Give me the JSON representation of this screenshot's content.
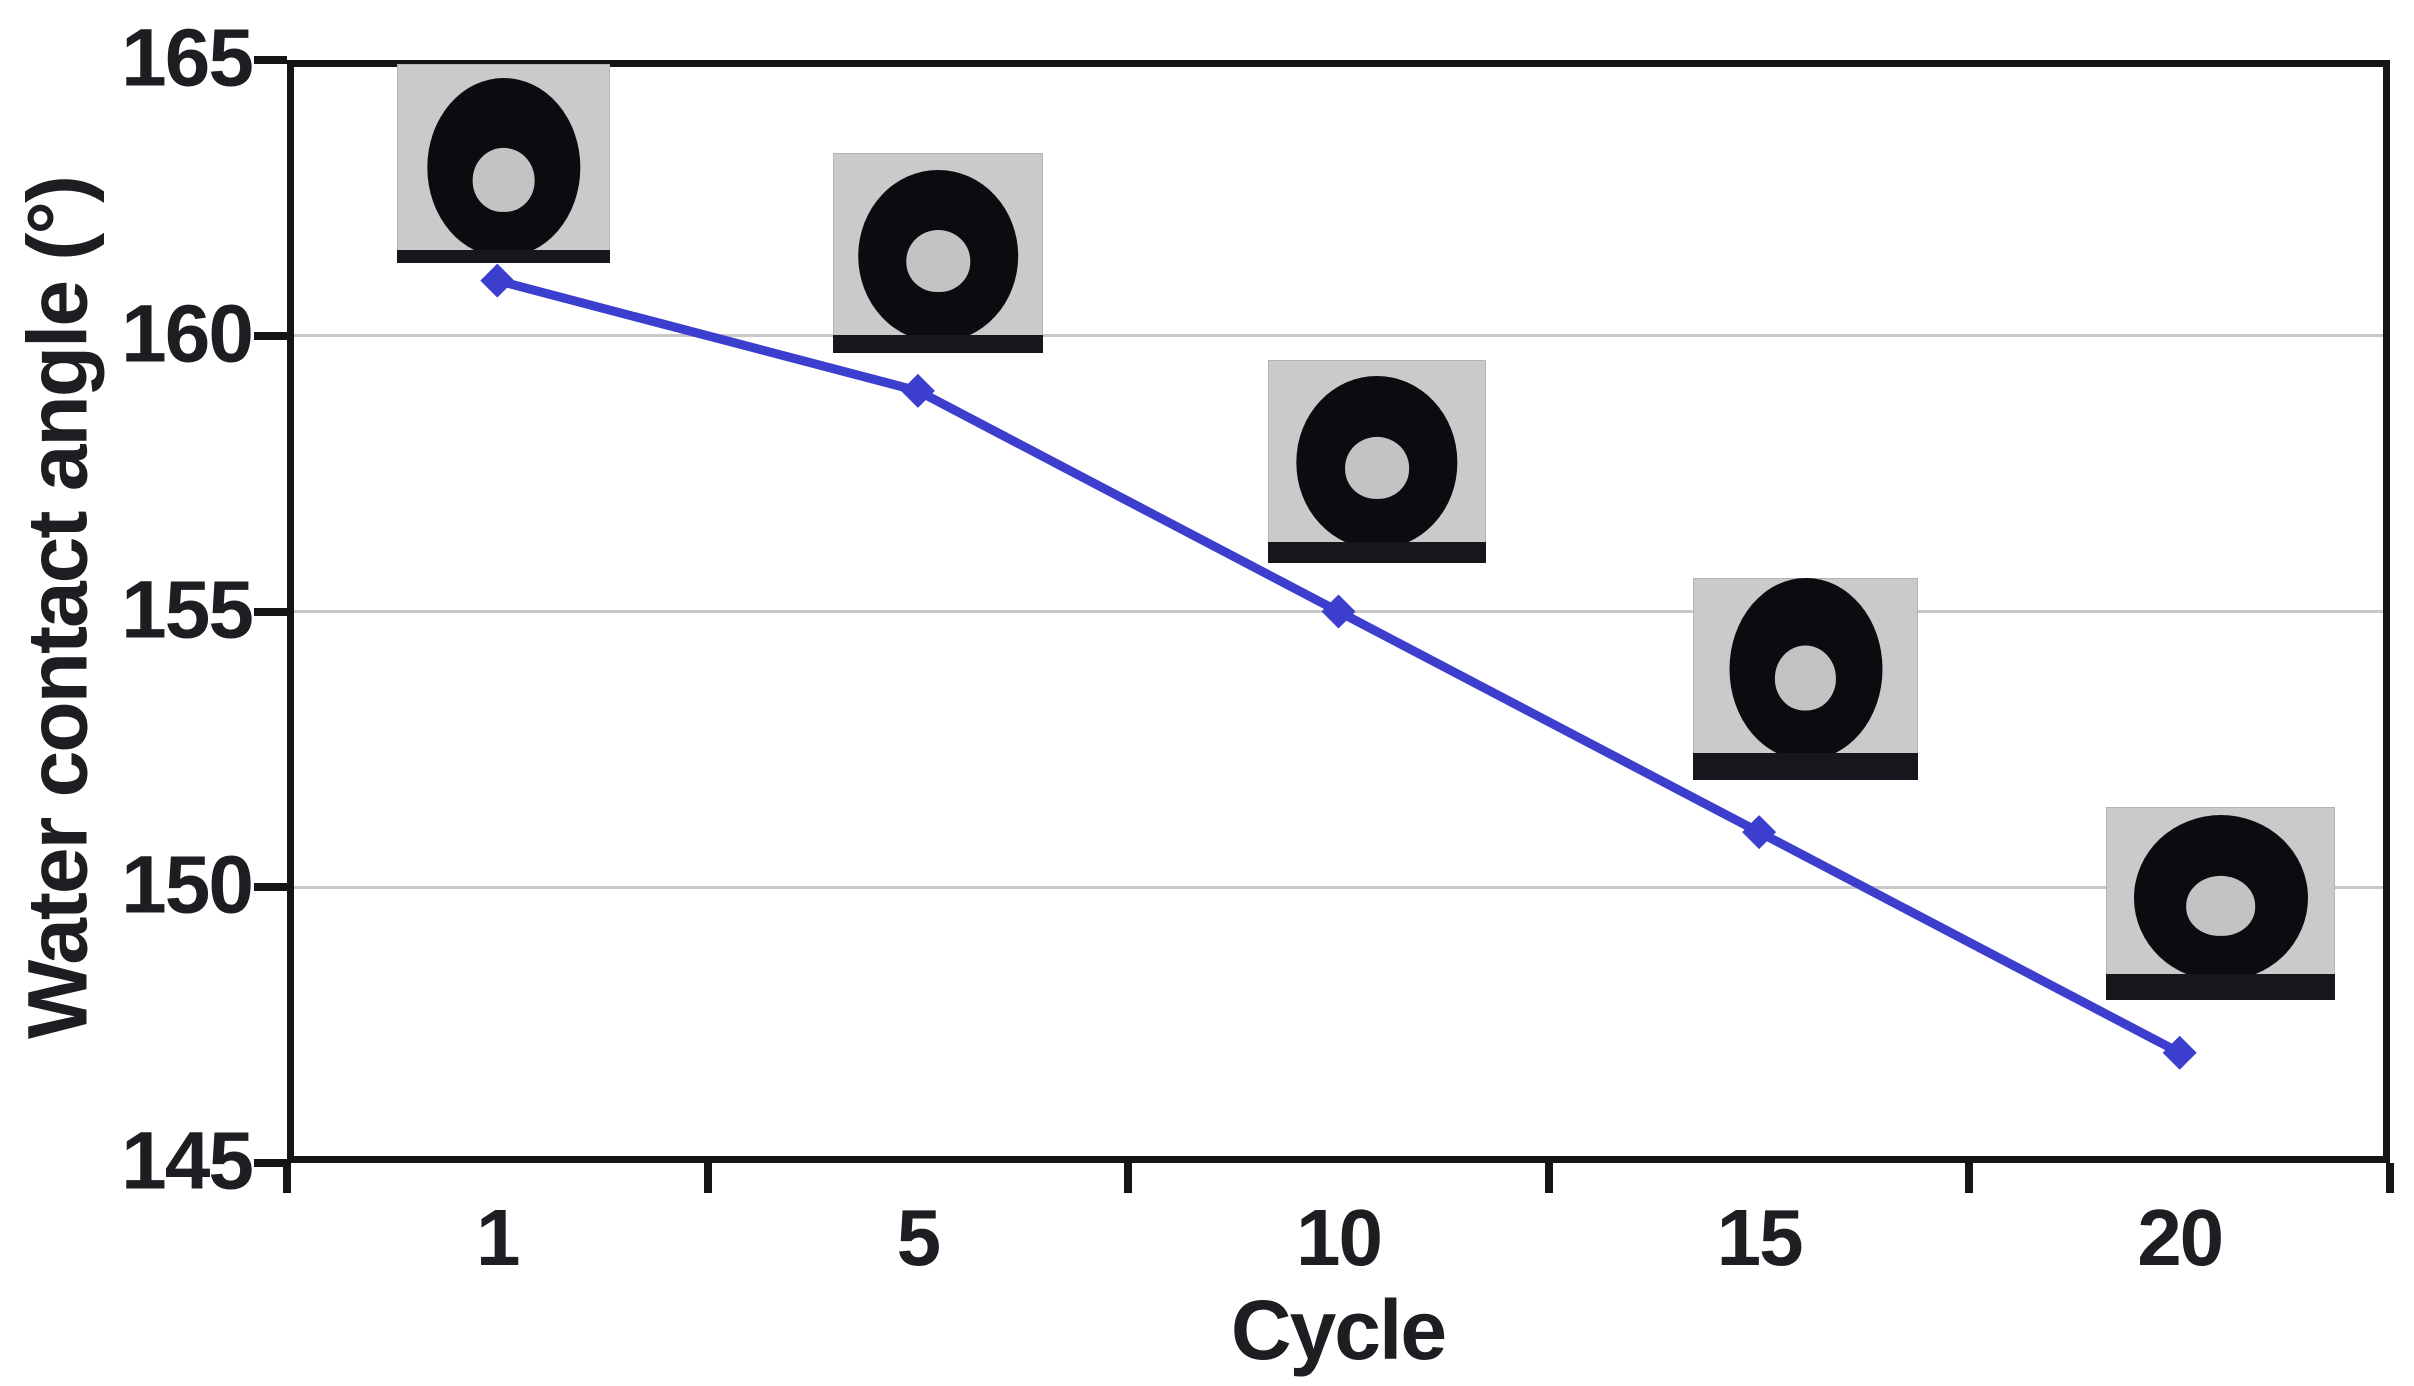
{
  "chart": {
    "y_title": "Water contact angle (°)",
    "x_title": "Cycle"
  },
  "chart_data": {
    "type": "line",
    "categories": [
      "1",
      "5",
      "10",
      "15",
      "20"
    ],
    "series": [
      {
        "name": "Water contact angle",
        "values": [
          161,
          159,
          155,
          151,
          147
        ]
      }
    ],
    "title": "",
    "xlabel": "Cycle",
    "ylabel": "Water contact angle (°)",
    "ylim": [
      145,
      165
    ],
    "yticks": [
      165,
      160,
      155,
      150,
      145
    ],
    "gridline_values": [
      160,
      155,
      150
    ],
    "grid": "horizontal-only",
    "legend_position": "none",
    "line_color": "#3c3ecd",
    "marker": "diamond",
    "marker_color": "#3c3ecd",
    "frame_color": "#151515",
    "gridline_color": "#c8c8c8",
    "text_color": "#1d1d22",
    "inset_background": "#cacaca"
  },
  "insets": [
    {
      "name": "droplet-photo-cycle-1",
      "cycle": "1"
    },
    {
      "name": "droplet-photo-cycle-5",
      "cycle": "5"
    },
    {
      "name": "droplet-photo-cycle-10",
      "cycle": "10"
    },
    {
      "name": "droplet-photo-cycle-15",
      "cycle": "15"
    },
    {
      "name": "droplet-photo-cycle-20",
      "cycle": "20"
    }
  ]
}
